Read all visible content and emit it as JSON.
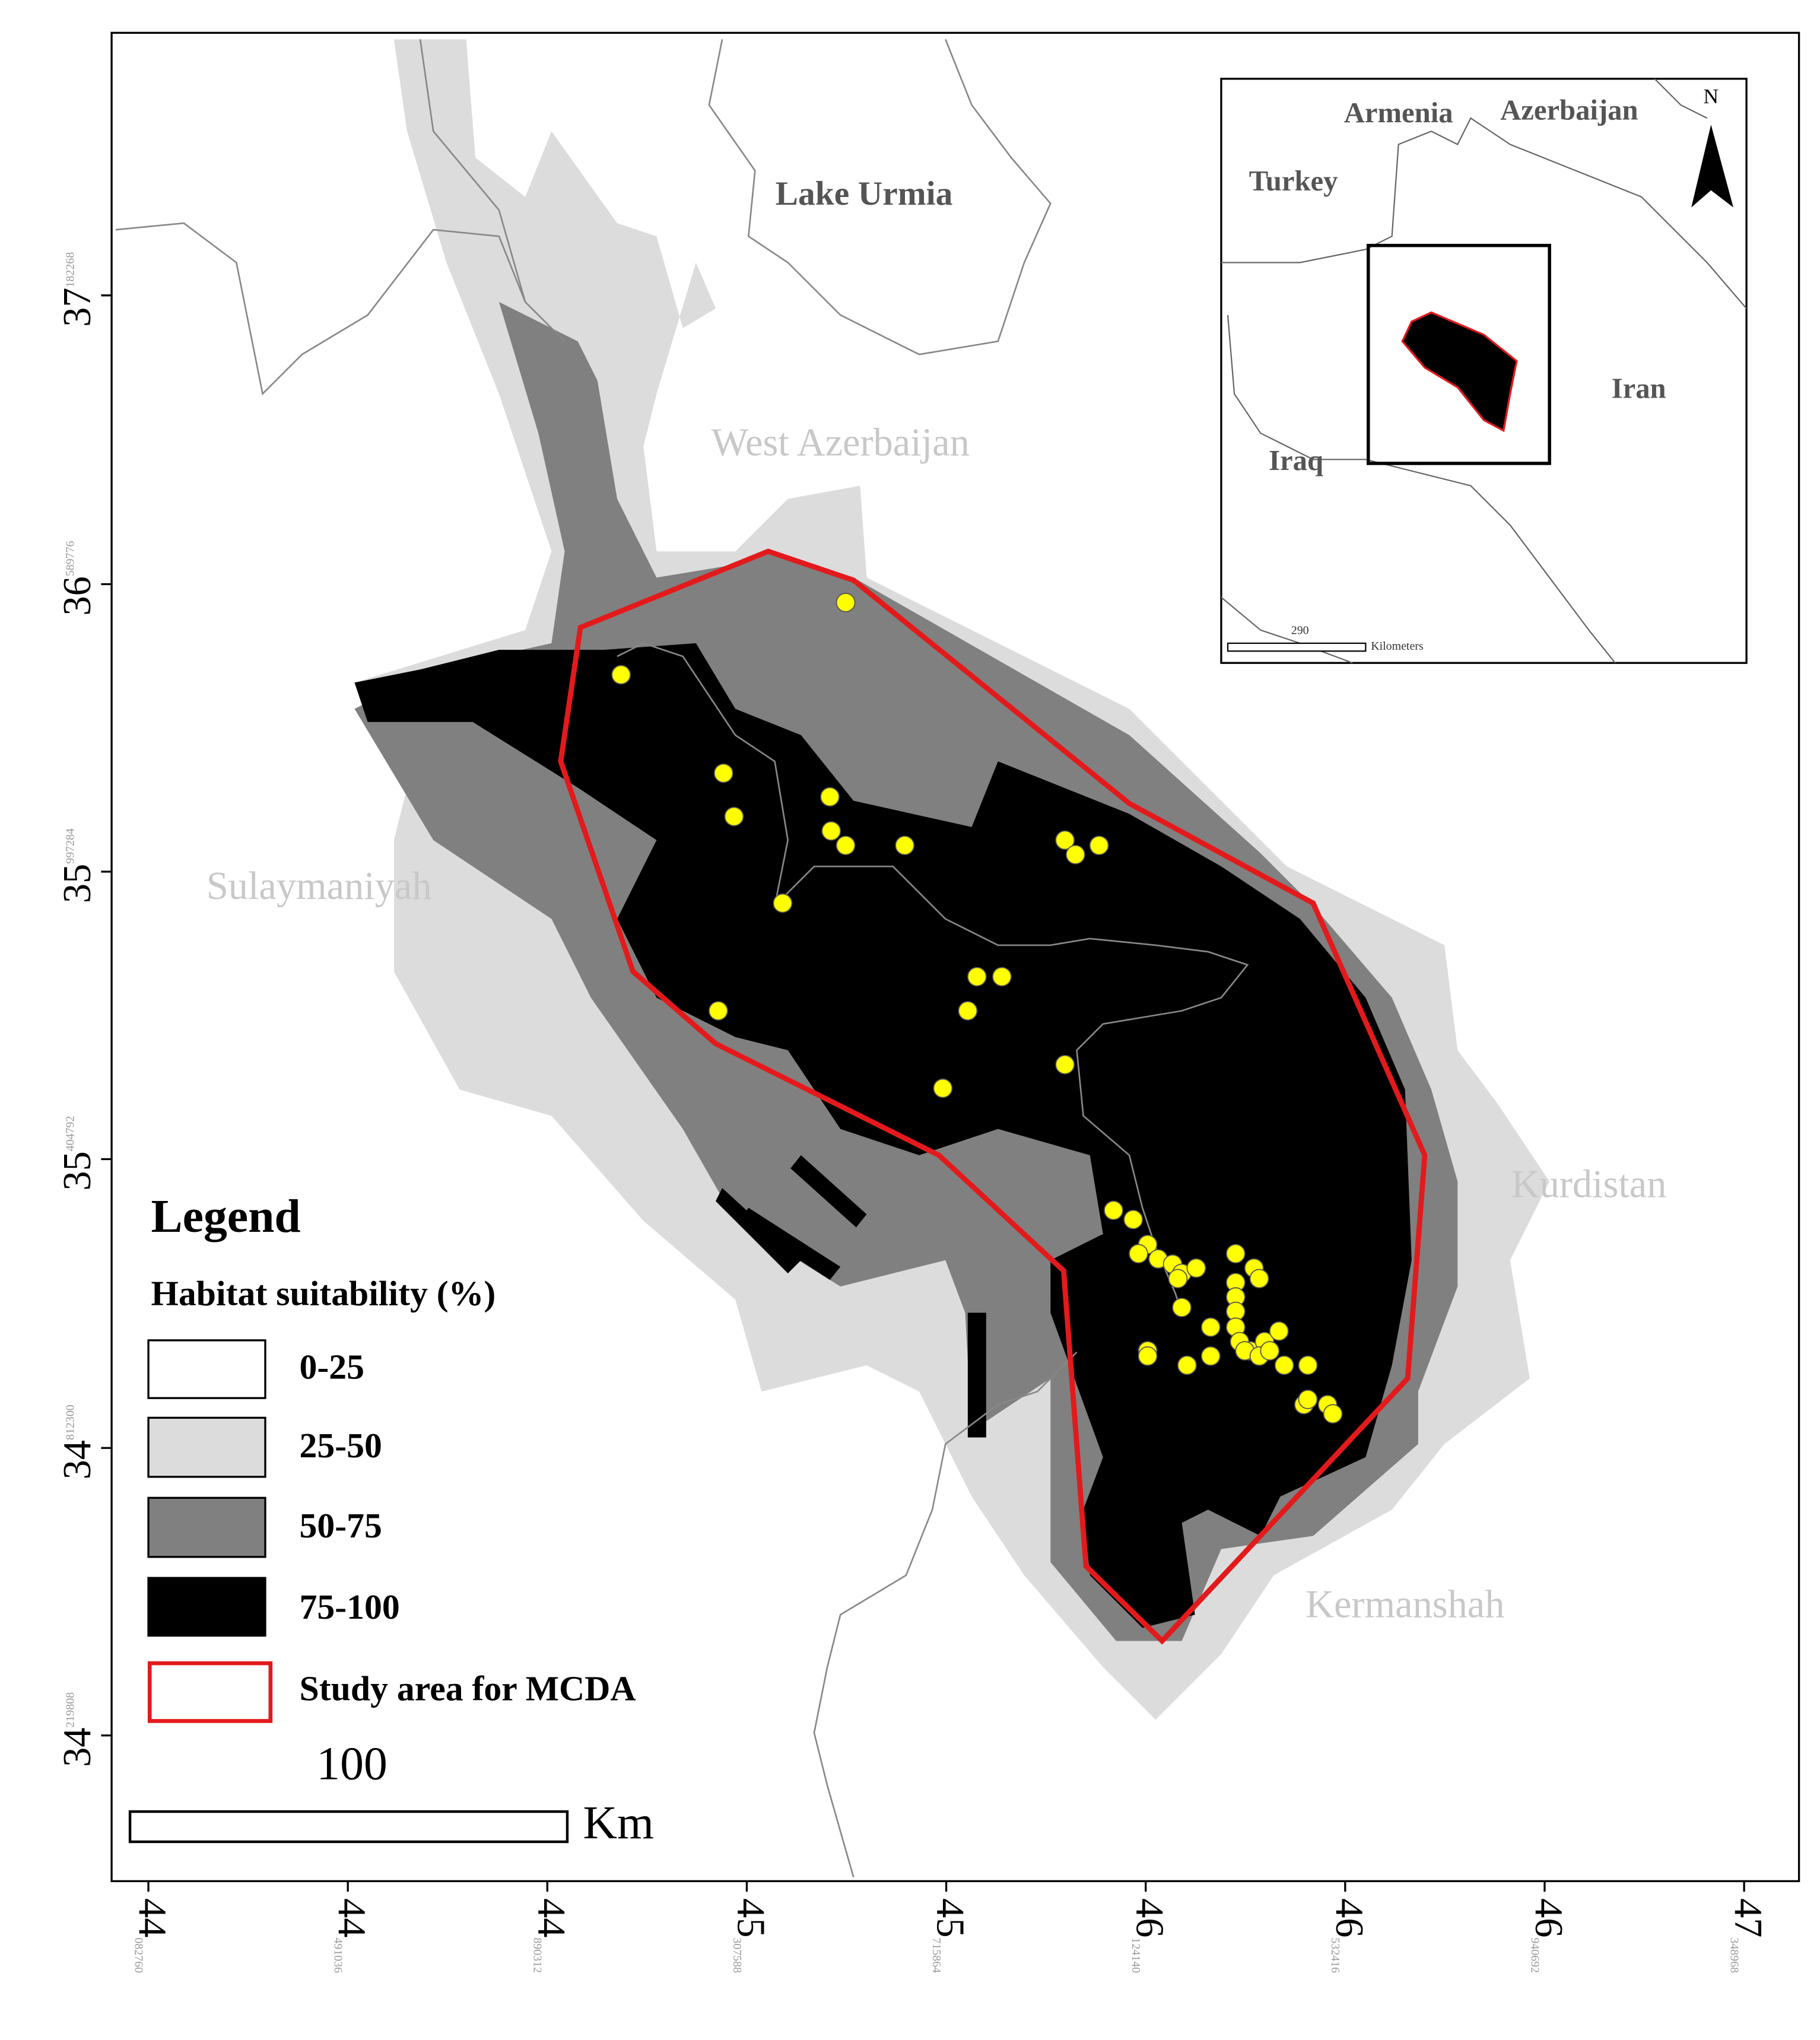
{
  "map": {
    "place_labels": [
      {
        "text": "Lake Urmia"
      },
      {
        "text": "West Azerbaijan"
      },
      {
        "text": "Sulaymaniyah"
      },
      {
        "text": "Kurdistan"
      },
      {
        "text": "Kermanshah"
      }
    ],
    "lat_ticks": [
      {
        "major": "37",
        "minor": "182268"
      },
      {
        "major": "36",
        "minor": "589776"
      },
      {
        "major": "35",
        "minor": "997284"
      },
      {
        "major": "35",
        "minor": "404792"
      },
      {
        "major": "34",
        "minor": "812300"
      },
      {
        "major": "34",
        "minor": "219808"
      }
    ],
    "lon_ticks": [
      {
        "major": "44",
        "minor": "082760"
      },
      {
        "major": "44",
        "minor": "491036"
      },
      {
        "major": "44",
        "minor": "890312"
      },
      {
        "major": "45",
        "minor": "307588"
      },
      {
        "major": "45",
        "minor": "715864"
      },
      {
        "major": "46",
        "minor": "124140"
      },
      {
        "major": "46",
        "minor": "532416"
      },
      {
        "major": "46",
        "minor": "940692"
      },
      {
        "major": "47",
        "minor": "348968"
      }
    ]
  },
  "inset": {
    "labels": [
      "Armenia",
      "Azerbaijan",
      "Turkey",
      "Iran",
      "Iraq"
    ],
    "north": "N",
    "scale_value": "290",
    "scale_unit": "Kilometers"
  },
  "legend": {
    "title": "Legend",
    "subtitle": "Habitat suitability (%)",
    "items": [
      "0-25",
      "25-50",
      "50-75",
      "75-100",
      "Study area for MCDA"
    ]
  },
  "scale_bar": {
    "value": "100",
    "unit": "Km"
  }
}
